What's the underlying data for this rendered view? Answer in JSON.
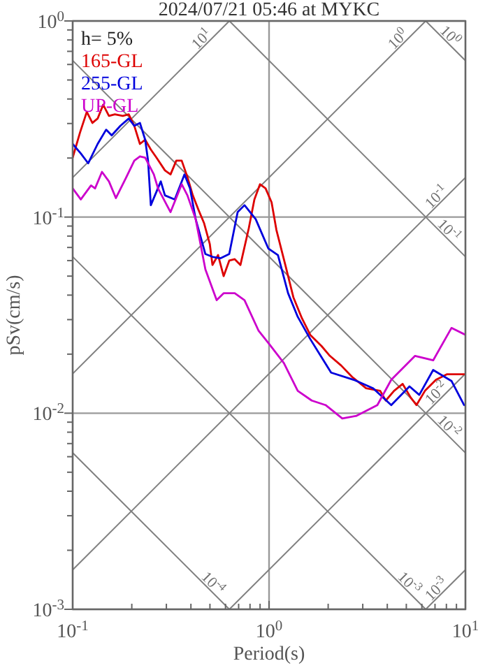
{
  "chart_data": {
    "type": "line",
    "title": "2024/07/21 05:46 at MYKC",
    "xlabel": "Period(s)",
    "ylabel": "pSv(cm/s)",
    "log": "xy",
    "grid": true,
    "legend": "top left",
    "xlim": [
      0.1,
      10
    ],
    "ylim": [
      0.001,
      1
    ],
    "xticks": [
      {
        "value": 0.1,
        "label": "10$^{-1}$"
      },
      {
        "value": 0.2,
        "label": null
      },
      {
        "value": 0.3,
        "label": null
      },
      {
        "value": 0.4,
        "label": null
      },
      {
        "value": 0.5,
        "label": null
      },
      {
        "value": 0.6,
        "label": null
      },
      {
        "value": 0.7,
        "label": null
      },
      {
        "value": 0.8,
        "label": null
      },
      {
        "value": 0.9,
        "label": null
      },
      {
        "value": 1,
        "label": "10$^{0}$"
      },
      {
        "value": 2,
        "label": null
      },
      {
        "value": 3,
        "label": null
      },
      {
        "value": 4,
        "label": null
      },
      {
        "value": 5,
        "label": null
      },
      {
        "value": 6,
        "label": null
      },
      {
        "value": 7,
        "label": null
      },
      {
        "value": 8,
        "label": null
      },
      {
        "value": 9,
        "label": null
      },
      {
        "value": 10,
        "label": "10$^{1}$"
      }
    ],
    "yticks": [
      {
        "value": 0.001,
        "label": "10$^{-3}$"
      },
      {
        "value": 0.002,
        "label": null
      },
      {
        "value": 0.003,
        "label": null
      },
      {
        "value": 0.004,
        "label": null
      },
      {
        "value": 0.005,
        "label": null
      },
      {
        "value": 0.006,
        "label": null
      },
      {
        "value": 0.007,
        "label": null
      },
      {
        "value": 0.008,
        "label": null
      },
      {
        "value": 0.009,
        "label": null
      },
      {
        "value": 0.01,
        "label": "10$^{-2}$"
      },
      {
        "value": 0.02,
        "label": null
      },
      {
        "value": 0.03,
        "label": null
      },
      {
        "value": 0.04,
        "label": null
      },
      {
        "value": 0.05,
        "label": null
      },
      {
        "value": 0.06,
        "label": null
      },
      {
        "value": 0.07,
        "label": null
      },
      {
        "value": 0.08,
        "label": null
      },
      {
        "value": 0.09,
        "label": null
      },
      {
        "value": 0.1,
        "label": "10$^{-1}$"
      },
      {
        "value": 0.2,
        "label": null
      },
      {
        "value": 0.3,
        "label": null
      },
      {
        "value": 0.4,
        "label": null
      },
      {
        "value": 0.5,
        "label": null
      },
      {
        "value": 0.6,
        "label": null
      },
      {
        "value": 0.7,
        "label": null
      },
      {
        "value": 0.8,
        "label": null
      },
      {
        "value": 0.9,
        "label": null
      },
      {
        "value": 1,
        "label": "10$^{0}$"
      }
    ],
    "annotations": [
      "h= 5%"
    ],
    "series": [
      {
        "type": "line",
        "name": "10$^{1}$",
        "color": "#808080",
        "x": [
          0.1,
          0.628
        ],
        "values": [
          0.159,
          1
        ]
      },
      {
        "type": "line",
        "name": "10$^{0}$",
        "color": "#808080",
        "x": [
          0.1,
          6.28
        ],
        "values": [
          0.0159,
          1
        ]
      },
      {
        "type": "line",
        "name": "10$^{-1}$",
        "color": "#808080",
        "x": [
          0.1,
          10
        ],
        "values": [
          0.00159,
          0.159
        ]
      },
      {
        "type": "line",
        "name": "10$^{-2}$",
        "color": "#808080",
        "x": [
          0.628,
          10
        ],
        "values": [
          0.001,
          0.0159
        ]
      },
      {
        "type": "line",
        "name": "10$^{-3}$",
        "color": "#808080",
        "x": [
          6.28,
          10
        ],
        "values": [
          0.001,
          0.00159
        ]
      },
      {
        "type": "line",
        "name": "10$^{0}$",
        "color": "#808080",
        "x": [
          6.28,
          10
        ],
        "values": [
          1,
          0.628
        ]
      },
      {
        "type": "line",
        "name": "10$^{-1}$",
        "color": "#808080",
        "x": [
          0.628,
          10
        ],
        "values": [
          1,
          0.0628
        ]
      },
      {
        "type": "line",
        "name": "10$^{-2}$",
        "color": "#808080",
        "x": [
          0.1,
          10
        ],
        "values": [
          0.628,
          0.00628
        ]
      },
      {
        "type": "line",
        "name": "10$^{-3}$",
        "color": "#808080",
        "x": [
          0.1,
          6.28
        ],
        "values": [
          0.0628,
          0.001
        ]
      },
      {
        "type": "line",
        "name": "10$^{-4}$",
        "color": "#808080",
        "x": [
          0.1,
          0.628
        ],
        "values": [
          0.00628,
          0.001
        ]
      },
      {
        "name": "165-GL",
        "color": "#dd0000",
        "x": [
          0.1,
          0.109,
          0.118,
          0.126,
          0.134,
          0.143,
          0.153,
          0.164,
          0.18,
          0.193,
          0.206,
          0.22,
          0.234,
          0.25,
          0.267,
          0.295,
          0.315,
          0.337,
          0.359,
          0.384,
          0.409,
          0.437,
          0.467,
          0.499,
          0.515,
          0.55,
          0.587,
          0.627,
          0.669,
          0.715,
          0.789,
          0.842,
          0.899,
          0.96,
          1.03,
          1.09,
          1.21,
          1.33,
          1.47,
          1.62,
          1.85,
          2.04,
          2.33,
          2.65,
          3.12,
          3.68,
          3.93,
          4.33,
          4.79,
          5.27,
          5.63,
          6.22,
          7.08,
          8.07,
          9.21,
          10
        ],
        "values": [
          0.201,
          0.27,
          0.344,
          0.302,
          0.318,
          0.374,
          0.328,
          0.334,
          0.328,
          0.334,
          0.292,
          0.236,
          0.248,
          0.221,
          0.201,
          0.173,
          0.165,
          0.194,
          0.194,
          0.16,
          0.129,
          0.109,
          0.093,
          0.073,
          0.057,
          0.064,
          0.05,
          0.06,
          0.061,
          0.057,
          0.088,
          0.123,
          0.147,
          0.14,
          0.119,
          0.086,
          0.057,
          0.039,
          0.0305,
          0.0251,
          0.022,
          0.0196,
          0.0175,
          0.0153,
          0.0134,
          0.013,
          0.0116,
          0.013,
          0.0141,
          0.012,
          0.011,
          0.013,
          0.0148,
          0.0158,
          0.0158,
          0.0158
        ]
      },
      {
        "name": "255-GL",
        "color": "#0000dd",
        "x": [
          0.1,
          0.11,
          0.12,
          0.134,
          0.148,
          0.158,
          0.175,
          0.193,
          0.206,
          0.22,
          0.234,
          0.242,
          0.25,
          0.281,
          0.295,
          0.331,
          0.371,
          0.396,
          0.423,
          0.474,
          0.515,
          0.567,
          0.627,
          0.692,
          0.75,
          0.855,
          0.991,
          1.11,
          1.25,
          1.4,
          1.62,
          2.07,
          2.7,
          3.39,
          4.19,
          5.19,
          5.82,
          6.85,
          8.49,
          9.84
        ],
        "values": [
          0.236,
          0.211,
          0.188,
          0.236,
          0.279,
          0.261,
          0.292,
          0.318,
          0.292,
          0.302,
          0.248,
          0.194,
          0.115,
          0.152,
          0.129,
          0.123,
          0.165,
          0.14,
          0.0976,
          0.0648,
          0.0627,
          0.0617,
          0.0648,
          0.106,
          0.115,
          0.0976,
          0.0692,
          0.064,
          0.0409,
          0.031,
          0.0239,
          0.0161,
          0.0148,
          0.0134,
          0.011,
          0.0137,
          0.0124,
          0.0166,
          0.0146,
          0.011
        ]
      },
      {
        "name": "UP-GL",
        "color": "#cc00cc",
        "x": [
          0.1,
          0.11,
          0.124,
          0.13,
          0.141,
          0.153,
          0.166,
          0.186,
          0.206,
          0.22,
          0.234,
          0.259,
          0.272,
          0.315,
          0.359,
          0.384,
          0.423,
          0.474,
          0.541,
          0.587,
          0.669,
          0.75,
          0.885,
          1.01,
          1.19,
          1.4,
          1.65,
          1.94,
          2.36,
          2.79,
          3.56,
          4.19,
          5.54,
          6.85,
          8.49,
          10
        ],
        "values": [
          0.14,
          0.123,
          0.145,
          0.14,
          0.17,
          0.152,
          0.125,
          0.157,
          0.194,
          0.204,
          0.201,
          0.165,
          0.14,
          0.106,
          0.147,
          0.129,
          0.0976,
          0.0541,
          0.0377,
          0.0409,
          0.0409,
          0.0377,
          0.0263,
          0.0223,
          0.018,
          0.013,
          0.0116,
          0.011,
          0.0094,
          0.0097,
          0.011,
          0.0148,
          0.0196,
          0.0186,
          0.0272,
          0.0251
        ]
      }
    ]
  }
}
